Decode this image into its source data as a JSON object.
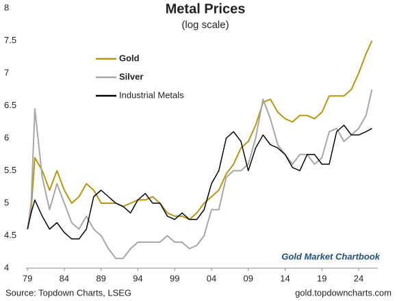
{
  "chart_data": {
    "type": "line",
    "title": "Metal Prices",
    "subtitle": "(log scale)",
    "annotation": "Gold Market Chartbook",
    "source": "Source: Topdown Charts, LSEG",
    "website": "gold.topdowncharts.com",
    "x": [
      1979,
      1979.5,
      1980,
      1981,
      1982,
      1983,
      1984,
      1985,
      1986,
      1987,
      1988,
      1989,
      1990,
      1991,
      1992,
      1993,
      1994,
      1995,
      1996,
      1997,
      1998,
      1999,
      2000,
      2001,
      2002,
      2003,
      2004,
      2005,
      2006,
      2007,
      2008,
      2009,
      2010,
      2011,
      2012,
      2013,
      2014,
      2015,
      2016,
      2017,
      2018,
      2019,
      2020,
      2021,
      2022,
      2023,
      2024,
      2025,
      2025.8
    ],
    "xlim": [
      1978.8,
      2026.6
    ],
    "xticks": [
      {
        "value": 1979,
        "label": "79"
      },
      {
        "value": 1984,
        "label": "84"
      },
      {
        "value": 1989,
        "label": "89"
      },
      {
        "value": 1994,
        "label": "94"
      },
      {
        "value": 1999,
        "label": "99"
      },
      {
        "value": 2004,
        "label": "04"
      },
      {
        "value": 2009,
        "label": "09"
      },
      {
        "value": 2014,
        "label": "14"
      },
      {
        "value": 2019,
        "label": "19"
      },
      {
        "value": 2024,
        "label": "24"
      }
    ],
    "ylim": [
      4,
      8
    ],
    "yticks": [
      4,
      4.5,
      5,
      5.5,
      6,
      6.5,
      7,
      7.5,
      8
    ],
    "grid": false,
    "legend": "top-left",
    "series": [
      {
        "name": "Gold",
        "color": "#b8960c",
        "values": [
          4.6,
          4.9,
          5.7,
          5.5,
          5.2,
          5.5,
          5.2,
          5.0,
          5.1,
          5.3,
          5.2,
          5.0,
          5.0,
          5.0,
          4.95,
          5.0,
          5.05,
          5.05,
          5.1,
          5.0,
          4.85,
          4.8,
          4.8,
          4.75,
          4.85,
          5.0,
          5.1,
          5.2,
          5.45,
          5.6,
          5.85,
          5.95,
          6.2,
          6.55,
          6.6,
          6.4,
          6.3,
          6.25,
          6.35,
          6.35,
          6.3,
          6.4,
          6.65,
          6.65,
          6.65,
          6.75,
          7.0,
          7.3,
          7.5
        ]
      },
      {
        "name": "Silver",
        "color": "#a6a6a6",
        "values": [
          4.6,
          5.0,
          6.45,
          5.4,
          4.9,
          5.3,
          5.0,
          4.7,
          4.6,
          4.8,
          4.6,
          4.5,
          4.3,
          4.15,
          4.15,
          4.3,
          4.4,
          4.4,
          4.4,
          4.4,
          4.5,
          4.4,
          4.4,
          4.3,
          4.35,
          4.5,
          4.9,
          4.9,
          5.4,
          5.5,
          5.5,
          5.6,
          6.0,
          6.6,
          6.3,
          5.9,
          5.75,
          5.6,
          5.75,
          5.75,
          5.6,
          5.7,
          6.1,
          6.15,
          5.95,
          6.05,
          6.15,
          6.35,
          6.75
        ]
      },
      {
        "name": "Industrial Metals",
        "color": "#000000",
        "values": [
          4.6,
          4.85,
          5.05,
          4.8,
          4.6,
          4.7,
          4.55,
          4.45,
          4.45,
          4.6,
          5.1,
          5.2,
          5.1,
          5.0,
          4.95,
          4.85,
          5.05,
          5.15,
          5.0,
          5.0,
          4.8,
          4.75,
          4.85,
          4.75,
          4.75,
          4.9,
          5.3,
          5.5,
          6.0,
          6.1,
          5.95,
          5.5,
          5.85,
          6.05,
          5.9,
          5.85,
          5.75,
          5.55,
          5.5,
          5.75,
          5.75,
          5.6,
          5.6,
          6.1,
          6.2,
          6.05,
          6.05,
          6.1,
          6.15
        ]
      }
    ]
  }
}
